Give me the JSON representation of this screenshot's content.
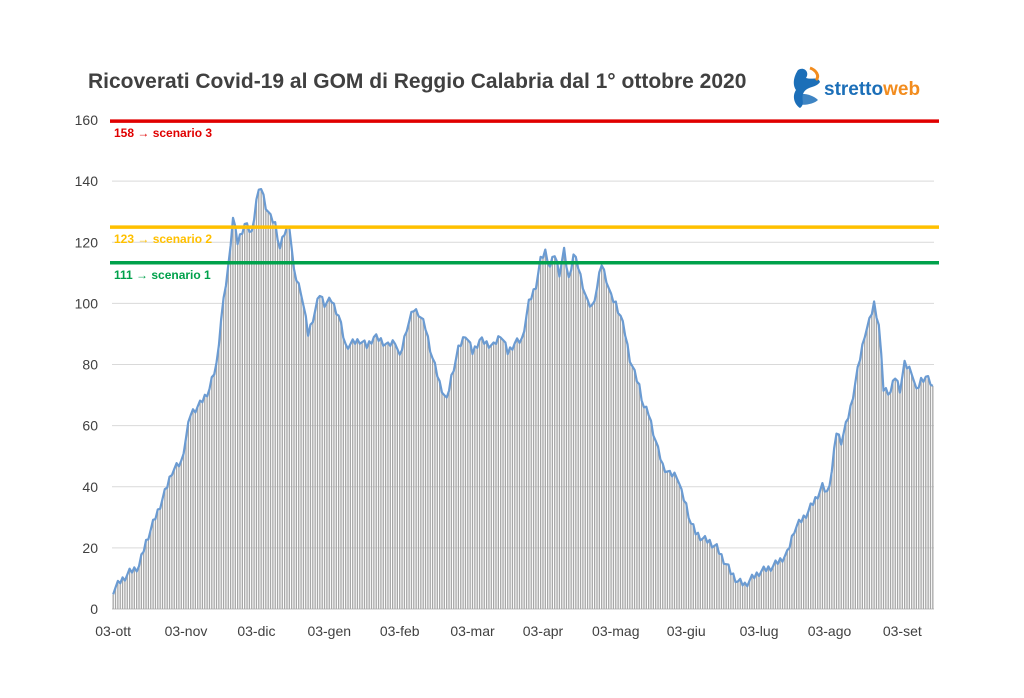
{
  "chart_data": {
    "type": "bar",
    "title": "Ricoverati Covid-19 al GOM di Reggio Calabria dal 1° ottobre 2020",
    "xlabel": "",
    "ylabel": "",
    "ylim": [
      0,
      160
    ],
    "yticks": [
      0,
      20,
      40,
      60,
      80,
      100,
      120,
      140,
      160
    ],
    "xtick_labels": [
      "03-ott",
      "03-nov",
      "03-dic",
      "03-gen",
      "03-feb",
      "03-mar",
      "03-apr",
      "03-mag",
      "03-giu",
      "03-lug",
      "03-ago",
      "03-set"
    ],
    "grid": true,
    "bar_color": "#a6a6a6",
    "line_color": "#6b9bd2",
    "series_keypoints_day_value": [
      [
        0,
        6
      ],
      [
        3,
        9
      ],
      [
        7,
        12
      ],
      [
        11,
        14
      ],
      [
        14,
        22
      ],
      [
        18,
        30
      ],
      [
        22,
        38
      ],
      [
        25,
        45
      ],
      [
        29,
        48
      ],
      [
        33,
        64
      ],
      [
        37,
        67
      ],
      [
        41,
        72
      ],
      [
        44,
        80
      ],
      [
        46,
        95
      ],
      [
        49,
        112
      ],
      [
        51,
        128
      ],
      [
        53,
        120
      ],
      [
        56,
        126
      ],
      [
        59,
        123
      ],
      [
        61,
        134
      ],
      [
        63,
        138
      ],
      [
        65,
        132
      ],
      [
        67,
        128
      ],
      [
        69,
        126
      ],
      [
        71,
        118
      ],
      [
        73,
        123
      ],
      [
        75,
        126
      ],
      [
        77,
        110
      ],
      [
        80,
        104
      ],
      [
        83,
        90
      ],
      [
        85,
        95
      ],
      [
        88,
        103
      ],
      [
        90,
        100
      ],
      [
        93,
        101
      ],
      [
        96,
        96
      ],
      [
        99,
        86
      ],
      [
        102,
        87
      ],
      [
        105,
        88
      ],
      [
        108,
        86
      ],
      [
        111,
        89
      ],
      [
        114,
        88
      ],
      [
        117,
        86
      ],
      [
        120,
        88
      ],
      [
        122,
        82
      ],
      [
        125,
        92
      ],
      [
        128,
        98
      ],
      [
        130,
        97
      ],
      [
        133,
        92
      ],
      [
        136,
        82
      ],
      [
        139,
        74
      ],
      [
        142,
        68
      ],
      [
        144,
        76
      ],
      [
        147,
        85
      ],
      [
        150,
        90
      ],
      [
        153,
        84
      ],
      [
        156,
        88
      ],
      [
        159,
        87
      ],
      [
        162,
        86
      ],
      [
        165,
        90
      ],
      [
        168,
        84
      ],
      [
        171,
        87
      ],
      [
        174,
        88
      ],
      [
        177,
        100
      ],
      [
        180,
        106
      ],
      [
        182,
        114
      ],
      [
        184,
        117
      ],
      [
        186,
        112
      ],
      [
        188,
        116
      ],
      [
        190,
        110
      ],
      [
        192,
        117
      ],
      [
        194,
        108
      ],
      [
        196,
        116
      ],
      [
        198,
        112
      ],
      [
        200,
        106
      ],
      [
        202,
        100
      ],
      [
        204,
        99
      ],
      [
        206,
        105
      ],
      [
        208,
        113
      ],
      [
        210,
        108
      ],
      [
        212,
        102
      ],
      [
        214,
        100
      ],
      [
        216,
        96
      ],
      [
        218,
        90
      ],
      [
        220,
        82
      ],
      [
        222,
        77
      ],
      [
        224,
        73
      ],
      [
        226,
        66
      ],
      [
        228,
        64
      ],
      [
        230,
        58
      ],
      [
        232,
        52
      ],
      [
        234,
        47
      ],
      [
        237,
        44
      ],
      [
        240,
        44
      ],
      [
        242,
        38
      ],
      [
        244,
        34
      ],
      [
        246,
        28
      ],
      [
        248,
        25
      ],
      [
        251,
        23
      ],
      [
        254,
        22
      ],
      [
        257,
        20
      ],
      [
        260,
        16
      ],
      [
        263,
        12
      ],
      [
        266,
        9
      ],
      [
        269,
        8
      ],
      [
        272,
        10
      ],
      [
        275,
        12
      ],
      [
        278,
        13
      ],
      [
        281,
        14
      ],
      [
        284,
        16
      ],
      [
        287,
        18
      ],
      [
        290,
        26
      ],
      [
        293,
        29
      ],
      [
        296,
        32
      ],
      [
        299,
        36
      ],
      [
        302,
        40
      ],
      [
        304,
        38
      ],
      [
        306,
        45
      ],
      [
        308,
        58
      ],
      [
        310,
        55
      ],
      [
        312,
        60
      ],
      [
        314,
        66
      ],
      [
        316,
        74
      ],
      [
        318,
        82
      ],
      [
        320,
        90
      ],
      [
        322,
        94
      ],
      [
        324,
        100
      ],
      [
        326,
        93
      ],
      [
        328,
        72
      ],
      [
        331,
        71
      ],
      [
        333,
        76
      ],
      [
        335,
        72
      ],
      [
        337,
        80
      ],
      [
        340,
        78
      ],
      [
        342,
        71
      ],
      [
        344,
        75
      ],
      [
        346,
        76
      ],
      [
        349,
        73
      ]
    ],
    "reference_lines": [
      {
        "value": 158,
        "label": "158 → scenario 3",
        "color": "#e00000"
      },
      {
        "value": 123,
        "label": "123 → scenario 2",
        "color": "#ffc000"
      },
      {
        "value": 111,
        "label": "111 → scenario 1",
        "color": "#00a14b"
      }
    ]
  },
  "logo": {
    "part1": "stretto",
    "part2": "web"
  }
}
